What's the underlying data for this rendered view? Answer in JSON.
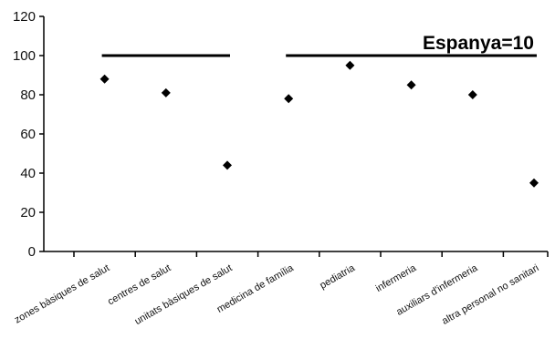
{
  "chart_data": {
    "type": "scatter",
    "title": "",
    "xlabel": "",
    "ylabel": "",
    "ylim": [
      0,
      120
    ],
    "yticks": [
      0,
      20,
      40,
      60,
      80,
      100,
      120
    ],
    "categories": [
      "zones bàsiques de salut",
      "centres de salut",
      "unitats bàsiques de salut",
      "medicina de família",
      "pediatria",
      "infermeria",
      "auxiliars d'infermeria",
      "altra personal no sanitari"
    ],
    "series": [
      {
        "values": [
          88,
          81,
          44,
          78,
          95,
          85,
          80,
          35
        ]
      }
    ],
    "reference_lines": [
      {
        "value": 100,
        "from_category": 0,
        "to_category": 2
      },
      {
        "value": 100,
        "from_category": 3,
        "to_category": 7
      }
    ],
    "annotation": "Espanya=10",
    "grid": false,
    "marker": "diamond",
    "colors": {
      "marker": "#000000",
      "axis": "#000000",
      "reference_line": "#000000"
    }
  }
}
